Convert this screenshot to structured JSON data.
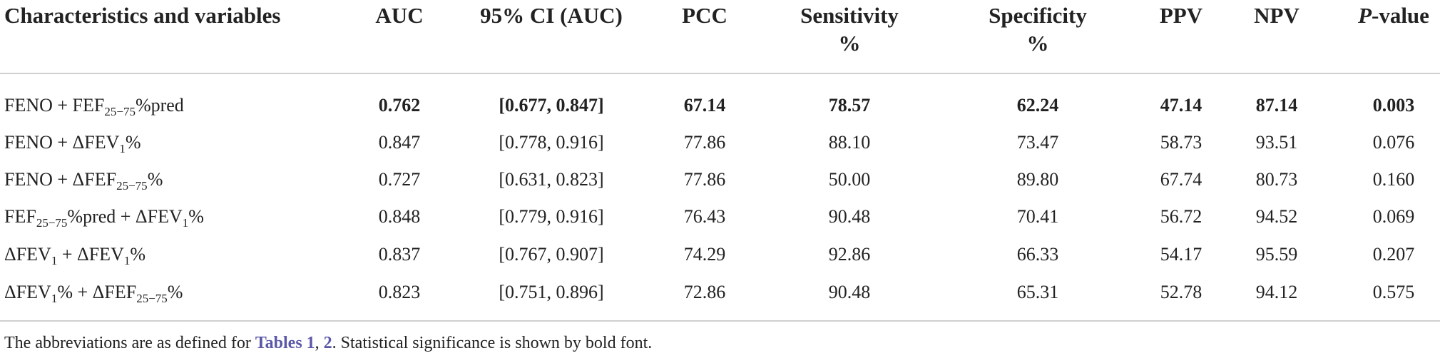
{
  "table": {
    "header": [
      [
        {
          "t": "Characteristics and variables"
        }
      ],
      [
        {
          "t": "AUC"
        }
      ],
      [
        {
          "t": "95% CI (AUC)"
        }
      ],
      [
        {
          "t": "PCC"
        }
      ],
      [
        {
          "line": "Sensitivity"
        },
        {
          "line": "%"
        }
      ],
      [
        {
          "line": "Specificity"
        },
        {
          "line": "%"
        }
      ],
      [
        {
          "t": "PPV"
        }
      ],
      [
        {
          "t": "NPV"
        }
      ],
      [
        {
          "i": "P"
        },
        {
          "t": "-value"
        }
      ]
    ],
    "rows": [
      {
        "bold": true,
        "label": [
          {
            "t": "FENO + FEF"
          },
          {
            "sub": "25−75"
          },
          {
            "t": "%pred"
          }
        ],
        "values": [
          "0.762",
          "[0.677, 0.847]",
          "67.14",
          "78.57",
          "62.24",
          "47.14",
          "87.14",
          "0.003"
        ]
      },
      {
        "bold": false,
        "label": [
          {
            "t": "FENO + ΔFEV"
          },
          {
            "sub": "1"
          },
          {
            "t": "%"
          }
        ],
        "values": [
          "0.847",
          "[0.778, 0.916]",
          "77.86",
          "88.10",
          "73.47",
          "58.73",
          "93.51",
          "0.076"
        ]
      },
      {
        "bold": false,
        "label": [
          {
            "t": "FENO + ΔFEF"
          },
          {
            "sub": "25−75"
          },
          {
            "t": "%"
          }
        ],
        "values": [
          "0.727",
          "[0.631, 0.823]",
          "77.86",
          "50.00",
          "89.80",
          "67.74",
          "80.73",
          "0.160"
        ]
      },
      {
        "bold": false,
        "label": [
          {
            "t": "FEF"
          },
          {
            "sub": "25−75"
          },
          {
            "t": "%pred + ΔFEV"
          },
          {
            "sub": "1"
          },
          {
            "t": "%"
          }
        ],
        "values": [
          "0.848",
          "[0.779, 0.916]",
          "76.43",
          "90.48",
          "70.41",
          "56.72",
          "94.52",
          "0.069"
        ]
      },
      {
        "bold": false,
        "label": [
          {
            "t": "ΔFEV"
          },
          {
            "sub": "1"
          },
          {
            "t": " + ΔFEV"
          },
          {
            "sub": "1"
          },
          {
            "t": "%"
          }
        ],
        "values": [
          "0.837",
          "[0.767, 0.907]",
          "74.29",
          "92.86",
          "66.33",
          "54.17",
          "95.59",
          "0.207"
        ]
      },
      {
        "bold": false,
        "label": [
          {
            "t": "ΔFEV"
          },
          {
            "sub": "1"
          },
          {
            "t": "% + ΔFEF"
          },
          {
            "sub": "25−75"
          },
          {
            "t": "%"
          }
        ],
        "values": [
          "0.823",
          "[0.751, 0.896]",
          "72.86",
          "90.48",
          "65.31",
          "52.78",
          "94.12",
          "0.575"
        ]
      }
    ],
    "footnote": [
      {
        "t": "The abbreviations are as defined for "
      },
      {
        "link": "Tables 1"
      },
      {
        "t": ", "
      },
      {
        "link": "2"
      },
      {
        "t": ". Statistical significance is shown by bold font."
      }
    ]
  }
}
